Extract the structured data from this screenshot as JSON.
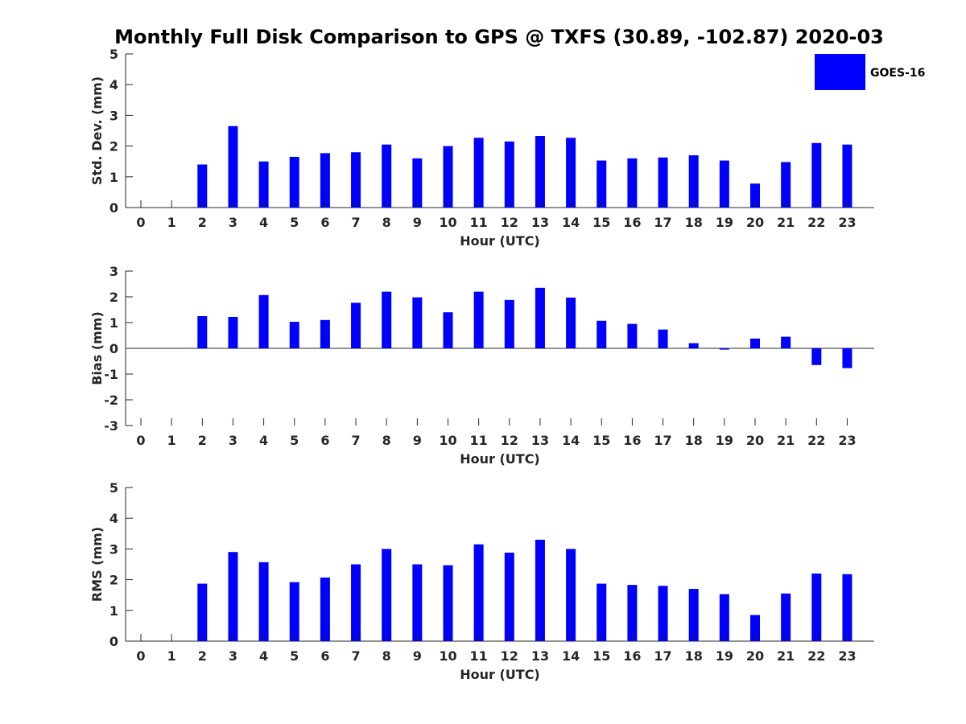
{
  "chart_data": {
    "type": "bar",
    "title": "Monthly Full Disk Comparison to GPS @ TXFS (30.89, -102.87) 2020-03",
    "legend": {
      "label": "GOES-16",
      "color": "#0000ff",
      "placement": "top-right"
    },
    "categories": [
      "0",
      "1",
      "2",
      "3",
      "4",
      "5",
      "6",
      "7",
      "8",
      "9",
      "10",
      "11",
      "12",
      "13",
      "14",
      "15",
      "16",
      "17",
      "18",
      "19",
      "20",
      "21",
      "22",
      "23"
    ],
    "panels": [
      {
        "name": "std-dev",
        "ylabel": "Std. Dev. (mm)",
        "xlabel": "Hour (UTC)",
        "ylim": [
          0,
          5
        ],
        "yticks": [
          "0",
          "1",
          "2",
          "3",
          "4",
          "5"
        ],
        "values": [
          null,
          null,
          1.4,
          2.65,
          1.5,
          1.65,
          1.77,
          1.8,
          2.05,
          1.6,
          2.0,
          2.27,
          2.15,
          2.33,
          2.27,
          1.53,
          1.6,
          1.63,
          1.7,
          1.53,
          0.78,
          1.48,
          2.1,
          2.05
        ]
      },
      {
        "name": "bias",
        "ylabel": "Bias (mm)",
        "xlabel": "Hour (UTC)",
        "ylim": [
          -3,
          3
        ],
        "yticks": [
          "-3",
          "-2",
          "-1",
          "0",
          "1",
          "2",
          "3"
        ],
        "values": [
          null,
          null,
          1.25,
          1.22,
          2.07,
          1.03,
          1.1,
          1.77,
          2.2,
          1.98,
          1.4,
          2.2,
          1.88,
          2.35,
          1.97,
          1.07,
          0.95,
          0.73,
          0.2,
          -0.05,
          0.38,
          0.45,
          -0.65,
          -0.77
        ]
      },
      {
        "name": "rms",
        "ylabel": "RMS (mm)",
        "xlabel": "Hour (UTC)",
        "ylim": [
          0,
          5
        ],
        "yticks": [
          "0",
          "1",
          "2",
          "3",
          "4",
          "5"
        ],
        "values": [
          null,
          null,
          1.87,
          2.9,
          2.57,
          1.92,
          2.07,
          2.5,
          3.0,
          2.5,
          2.47,
          3.15,
          2.88,
          3.3,
          3.0,
          1.87,
          1.83,
          1.8,
          1.7,
          1.53,
          0.85,
          1.55,
          2.2,
          2.18
        ]
      }
    ]
  }
}
